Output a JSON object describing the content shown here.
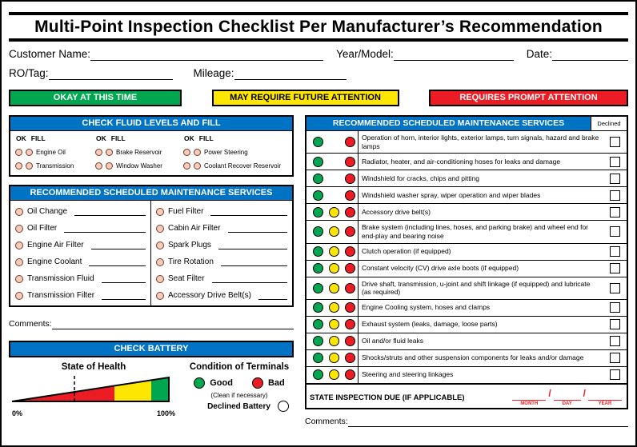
{
  "title": "Multi-Point Inspection Checklist Per Manufacturer’s Recommendation",
  "colors": {
    "green": "#00A650",
    "yellow": "#FFE600",
    "red": "#EC1C24",
    "blue": "#0173C5",
    "circle_fill": "#F7CDB9",
    "circle_border": "#7a3527"
  },
  "fields": {
    "customer_name": "Customer Name:",
    "year_model": "Year/Model:",
    "date": "Date:",
    "ro_tag": "RO/Tag:",
    "mileage": "Mileage:"
  },
  "legend": {
    "ok": "OKAY AT THIS TIME",
    "future": "MAY REQUIRE FUTURE ATTENTION",
    "prompt": "REQUIRES PROMPT ATTENTION"
  },
  "fluids": {
    "header": "CHECK FLUID LEVELS AND FILL",
    "ok_label": "OK",
    "fill_label": "FILL",
    "groups": [
      [
        "Engine Oil",
        "Transmission"
      ],
      [
        "Brake Reservoir",
        "Window Washer"
      ],
      [
        "Power Steering",
        "Coolant Recover Reservoir"
      ]
    ]
  },
  "maintenance": {
    "header": "RECOMMENDED SCHEDULED MAINTENANCE SERVICES",
    "col1": [
      "Oil Change",
      "Oil Filter",
      "Engine Air Filter",
      "Engine Coolant",
      "Transmission Fluid",
      "Transmission Filter"
    ],
    "col2": [
      "Fuel Filter",
      "Cabin Air Filter",
      "Spark Plugs",
      "Tire Rotation",
      "Seat Filter",
      "Accessory Drive Belt(s)"
    ]
  },
  "comments_left_label": "Comments:",
  "battery": {
    "header": "CHECK BATTERY",
    "health_label": "State of Health",
    "zero_pct": "0%",
    "hundred_pct": "100%",
    "terminals_label": "Condition of Terminals",
    "good": "Good",
    "bad": "Bad",
    "clean_note": "(Clean if necessary)",
    "declined": "Declined Battery"
  },
  "services": {
    "header": "RECOMMENDED SCHEDULED MAINTENANCE SERVICES",
    "declined_label": "Declined",
    "rows": [
      {
        "text": "Operation of horn, interior lights, exterior lamps, turn signals, hazard and brake lamps",
        "dots": [
          "green",
          "red"
        ]
      },
      {
        "text": "Radiator, heater, and air-conditioning hoses for leaks and damage",
        "dots": [
          "green",
          "red"
        ]
      },
      {
        "text": "Windshield for cracks, chips and pitting",
        "dots": [
          "green",
          "red"
        ]
      },
      {
        "text": "Windshield washer spray, wiper operation and wiper blades",
        "dots": [
          "green",
          "red"
        ]
      },
      {
        "text": "Accessory drive belt(s)",
        "dots": [
          "green",
          "yellow",
          "red"
        ]
      },
      {
        "text": "Brake system (including lines, hoses, and parking brake) and wheel end for end-play and bearing noise",
        "dots": [
          "green",
          "yellow",
          "red"
        ]
      },
      {
        "text": "Clutch operation (if equipped)",
        "dots": [
          "green",
          "yellow",
          "red"
        ]
      },
      {
        "text": "Constant velocity (CV) drive axle boots (if equipped)",
        "dots": [
          "green",
          "yellow",
          "red"
        ]
      },
      {
        "text": "Drive shaft, transmission, u-joint and shift linkage (if equipped) and lubricate (as required)",
        "dots": [
          "green",
          "yellow",
          "red"
        ]
      },
      {
        "text": "Engine Cooling system, hoses and clamps",
        "dots": [
          "green",
          "yellow",
          "red"
        ]
      },
      {
        "text": "Exhaust system (leaks, damage, loose parts)",
        "dots": [
          "green",
          "yellow",
          "red"
        ]
      },
      {
        "text": "Oil and/or fluid leaks",
        "dots": [
          "green",
          "yellow",
          "red"
        ]
      },
      {
        "text": "Shocks/struts and other suspension components for leaks and/or damage",
        "dots": [
          "green",
          "yellow",
          "red"
        ]
      },
      {
        "text": "Steering and steering linkages",
        "dots": [
          "green",
          "yellow",
          "red"
        ]
      }
    ]
  },
  "state_inspection": {
    "label": "STATE INSPECTION DUE (IF APPLICABLE)",
    "month": "MONTH",
    "day": "DAY",
    "year": "YEAR"
  },
  "comments_right_label": "Comments:"
}
